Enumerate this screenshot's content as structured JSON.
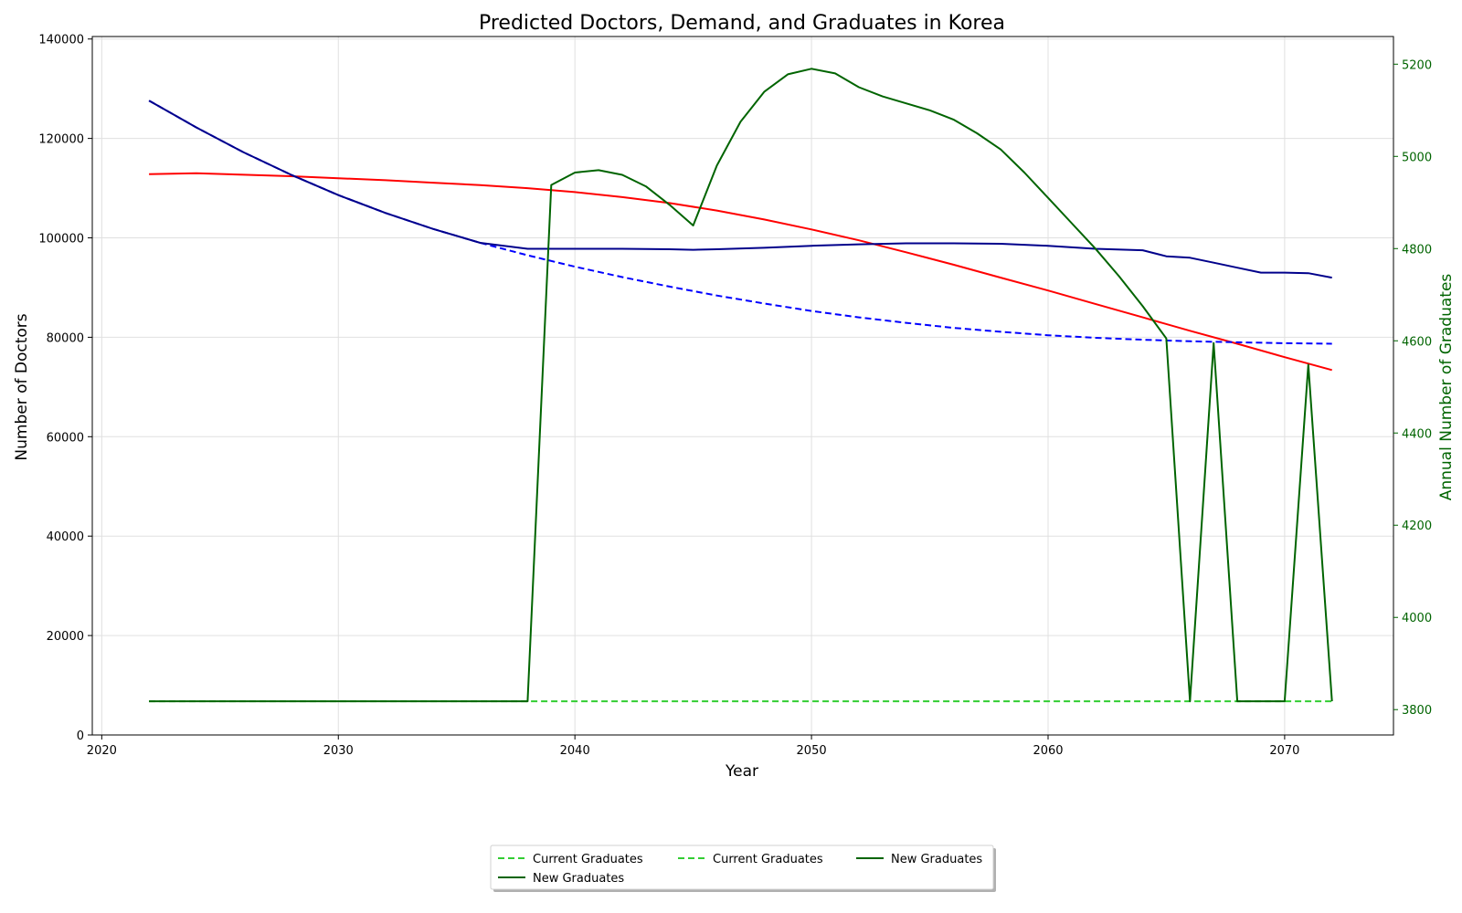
{
  "chart_data": {
    "type": "line",
    "title": "Predicted Doctors, Demand, and Graduates in Korea",
    "xlabel": "Year",
    "ylabel": "Number of Doctors",
    "y2label": "Annual Number of Graduates",
    "xlim": [
      2019.6,
      2074.6
    ],
    "ylim": [
      0,
      140500
    ],
    "y2lim": [
      3745,
      5260
    ],
    "xticks": [
      2020,
      2030,
      2040,
      2050,
      2060,
      2070
    ],
    "yticks": [
      0,
      20000,
      40000,
      60000,
      80000,
      100000,
      120000,
      140000
    ],
    "y2ticks": [
      3800,
      4000,
      4200,
      4400,
      4600,
      4800,
      5000,
      5200
    ],
    "grid": true,
    "legend_position": "bottom-center",
    "colors": {
      "red": "#ff0000",
      "blue": "#0000ff",
      "navy": "#00008b",
      "lime": "#32cd32",
      "green": "#006400",
      "axis2": "#006400"
    },
    "legend": [
      {
        "label": "Current Graduates",
        "style": "dashed",
        "color": "#32cd32"
      },
      {
        "label": "Current Graduates",
        "style": "dashed",
        "color": "#32cd32"
      },
      {
        "label": "New Graduates",
        "style": "solid",
        "color": "#006400"
      },
      {
        "label": "New Graduates",
        "style": "solid",
        "color": "#006400"
      }
    ],
    "series": [
      {
        "axis": "left",
        "color": "#ff0000",
        "style": "solid",
        "x": [
          2022,
          2024,
          2026,
          2028,
          2030,
          2032,
          2034,
          2036,
          2038,
          2040,
          2042,
          2044,
          2046,
          2048,
          2050,
          2052,
          2054,
          2056,
          2058,
          2060,
          2062,
          2064,
          2066,
          2068,
          2070,
          2072
        ],
        "y": [
          112800,
          113000,
          112700,
          112400,
          112000,
          111600,
          111100,
          110600,
          110000,
          109200,
          108200,
          107000,
          105500,
          103700,
          101700,
          99500,
          97100,
          94600,
          92000,
          89400,
          86700,
          84000,
          81300,
          78700,
          76000,
          73400
        ]
      },
      {
        "axis": "left",
        "color": "#0000ff",
        "style": "dashed",
        "x": [
          2022,
          2024,
          2026,
          2028,
          2030,
          2032,
          2034,
          2036,
          2038,
          2040,
          2042,
          2044,
          2046,
          2048,
          2050,
          2052,
          2054,
          2056,
          2058,
          2060,
          2062,
          2064,
          2066,
          2068,
          2070,
          2072
        ],
        "y": [
          127600,
          122200,
          117200,
          112700,
          108600,
          105000,
          101800,
          99000,
          96500,
          94200,
          92100,
          90200,
          88400,
          86800,
          85300,
          84000,
          82900,
          81900,
          81100,
          80400,
          79900,
          79500,
          79200,
          79000,
          78800,
          78700
        ]
      },
      {
        "axis": "left",
        "color": "#00008b",
        "style": "solid",
        "x": [
          2022,
          2024,
          2026,
          2028,
          2030,
          2032,
          2034,
          2036,
          2038,
          2040,
          2042,
          2044,
          2045,
          2046,
          2048,
          2050,
          2052,
          2054,
          2056,
          2058,
          2060,
          2062,
          2064,
          2065,
          2066,
          2067,
          2068,
          2069,
          2070,
          2071,
          2072
        ],
        "y": [
          127600,
          122200,
          117200,
          112700,
          108600,
          105000,
          101800,
          99000,
          97800,
          97800,
          97800,
          97700,
          97600,
          97700,
          98000,
          98400,
          98700,
          98900,
          98900,
          98800,
          98400,
          97800,
          97500,
          96300,
          96000,
          95000,
          94000,
          93000,
          93000,
          92900,
          92000
        ]
      },
      {
        "axis": "right",
        "color": "#32cd32",
        "style": "dashed",
        "x": [
          2022,
          2072
        ],
        "y": [
          3818,
          3818
        ]
      },
      {
        "axis": "right",
        "color": "#006400",
        "style": "solid",
        "x": [
          2022,
          2038,
          2039,
          2040,
          2041,
          2042,
          2043,
          2044,
          2045,
          2046,
          2047,
          2048,
          2049,
          2050,
          2051,
          2052,
          2053,
          2054,
          2055,
          2056,
          2057,
          2058,
          2059,
          2060,
          2061,
          2062,
          2063,
          2064,
          2065,
          2066,
          2067,
          2068,
          2069,
          2070,
          2071,
          2072
        ],
        "y": [
          3818,
          3818,
          4938,
          4965,
          4970,
          4960,
          4935,
          4895,
          4850,
          4980,
          5075,
          5140,
          5178,
          5190,
          5180,
          5150,
          5130,
          5115,
          5100,
          5080,
          5050,
          5015,
          4965,
          4910,
          4855,
          4800,
          4740,
          4675,
          4605,
          3818,
          4595,
          3818,
          3818,
          3818,
          4548,
          3818
        ]
      }
    ]
  }
}
